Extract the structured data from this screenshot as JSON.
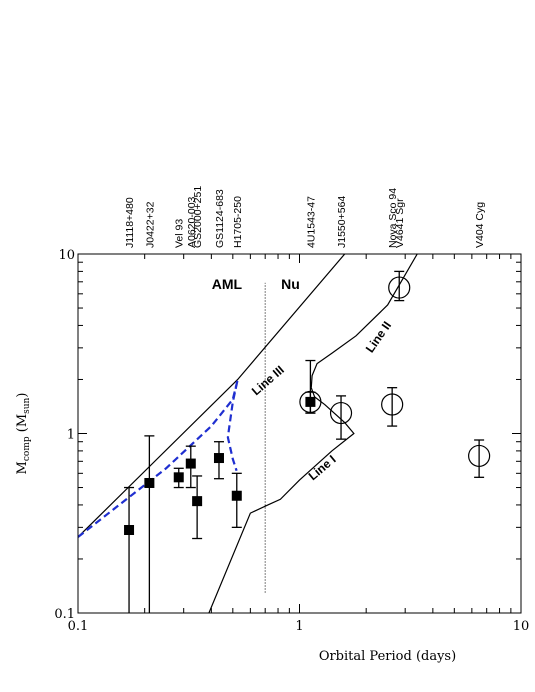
{
  "chart_data": {
    "type": "scatter",
    "xlabel": "Orbital Period (days)",
    "ylabel": "M",
    "ylabel_sub": "comp",
    "ylabel_paren_open": " (M",
    "ylabel_sub2": "sun",
    "ylabel_paren_close": ")",
    "x_scale": "log",
    "y_scale": "log",
    "xlim": [
      0.1,
      10
    ],
    "ylim": [
      0.1,
      10
    ],
    "x_ticks": [
      {
        "value": 0.1,
        "label": "0.1"
      },
      {
        "value": 1,
        "label": "1"
      },
      {
        "value": 10,
        "label": "10"
      }
    ],
    "y_ticks": [
      {
        "value": 0.1,
        "label": "0.1"
      },
      {
        "value": 1,
        "label": "1"
      },
      {
        "value": 10,
        "label": "10"
      }
    ],
    "grid": false,
    "top_labels": [
      {
        "period": 0.17,
        "name": "J1118+480"
      },
      {
        "period": 0.21,
        "name": "J0422+32"
      },
      {
        "period": 0.285,
        "name": "Vel 93"
      },
      {
        "period": 0.323,
        "name": "A0620-003"
      },
      {
        "period": 0.345,
        "name": "GS2000+251"
      },
      {
        "period": 0.433,
        "name": "GS1124-683"
      },
      {
        "period": 0.521,
        "name": "H1705-250"
      },
      {
        "period": 1.12,
        "name": "4U1543-47"
      },
      {
        "period": 1.54,
        "name": "J1550+564"
      },
      {
        "period": 2.62,
        "name": "Nova Sco 94"
      },
      {
        "period": 2.82,
        "name": "V4641 Sgr"
      },
      {
        "period": 6.47,
        "name": "V404 Cyg"
      }
    ],
    "series": [
      {
        "marker": "filled-square",
        "points": [
          {
            "x": 0.17,
            "y": 0.29,
            "ylo": 0.08,
            "yhi": 0.5
          },
          {
            "x": 0.21,
            "y": 0.53,
            "ylo": 0.08,
            "yhi": 0.97
          },
          {
            "x": 0.285,
            "y": 0.57,
            "ylo": 0.5,
            "yhi": 0.64
          },
          {
            "x": 0.323,
            "y": 0.68,
            "ylo": 0.5,
            "yhi": 0.85
          },
          {
            "x": 0.345,
            "y": 0.42,
            "ylo": 0.26,
            "yhi": 0.58
          },
          {
            "x": 0.433,
            "y": 0.73,
            "ylo": 0.56,
            "yhi": 0.9
          },
          {
            "x": 0.521,
            "y": 0.45,
            "ylo": 0.3,
            "yhi": 0.6
          },
          {
            "x": 1.12,
            "y": 1.5,
            "ylo": 1.3,
            "yhi": 2.55
          }
        ]
      },
      {
        "marker": "open-circle",
        "points": [
          {
            "x": 1.12,
            "y": 1.5,
            "ylo": 1.3,
            "yhi": 1.7
          },
          {
            "x": 1.54,
            "y": 1.3,
            "ylo": 0.93,
            "yhi": 1.62
          },
          {
            "x": 2.62,
            "y": 1.45,
            "ylo": 1.1,
            "yhi": 1.8
          },
          {
            "x": 2.82,
            "y": 6.5,
            "ylo": 5.5,
            "yhi": 8.0
          },
          {
            "x": 6.47,
            "y": 0.75,
            "ylo": 0.57,
            "yhi": 0.92
          }
        ]
      }
    ],
    "curves": [
      {
        "id": "line-iii",
        "style": "solid",
        "color": "#000000",
        "points": [
          [
            0.1,
            0.265
          ],
          [
            0.526,
            2.0
          ],
          [
            1.6,
            10.0
          ]
        ]
      },
      {
        "id": "line-ii",
        "style": "solid",
        "color": "#000000",
        "points": [
          [
            1.13,
            1.8
          ],
          [
            1.14,
            2.1
          ],
          [
            1.2,
            2.45
          ],
          [
            1.4,
            2.8
          ],
          [
            1.8,
            3.5
          ],
          [
            2.5,
            5.2
          ],
          [
            3.4,
            10.0
          ]
        ]
      },
      {
        "id": "line-i",
        "style": "solid",
        "color": "#000000",
        "points": [
          [
            0.39,
            0.1
          ],
          [
            0.6,
            0.36
          ],
          [
            0.72,
            0.4
          ],
          [
            0.82,
            0.43
          ],
          [
            1.0,
            0.55
          ],
          [
            1.4,
            0.8
          ],
          [
            1.76,
            1.0
          ],
          [
            1.6,
            1.15
          ],
          [
            1.3,
            1.45
          ],
          [
            1.17,
            1.6
          ],
          [
            1.13,
            1.8
          ]
        ]
      },
      {
        "id": "aml-model",
        "style": "dashed",
        "color": "#1f2fd0",
        "points": [
          [
            0.1,
            0.265
          ],
          [
            0.25,
            0.64
          ],
          [
            0.4,
            1.1
          ],
          [
            0.5,
            1.55
          ],
          [
            0.526,
            2.0
          ],
          [
            0.5,
            1.5
          ],
          [
            0.48,
            1.05
          ],
          [
            0.475,
            0.95
          ],
          [
            0.5,
            0.72
          ],
          [
            0.52,
            0.62
          ]
        ]
      }
    ],
    "divider": {
      "x": 0.7,
      "y_from": 0.13,
      "y_to": 6.9
    },
    "region_labels": [
      {
        "text": "AML",
        "x": 0.47,
        "y": 6.4
      },
      {
        "text": "Nu",
        "x": 0.91,
        "y": 6.4
      }
    ],
    "line_labels": [
      {
        "text": "Line III",
        "x": 0.74,
        "y": 1.9,
        "angle": -41
      },
      {
        "text": "Line II",
        "x": 2.35,
        "y": 3.35,
        "angle": -55
      },
      {
        "text": "Line I",
        "x": 1.3,
        "y": 0.62,
        "angle": -40
      }
    ]
  }
}
